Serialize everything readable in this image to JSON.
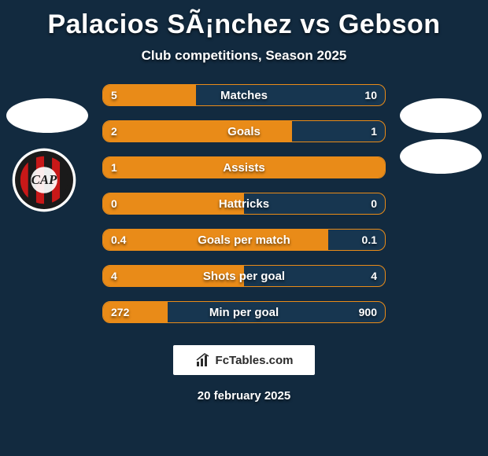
{
  "background_color": "#122a3f",
  "title": "Palacios SÃ¡nchez vs Gebson",
  "subtitle": "Club competitions, Season 2025",
  "avatar_placeholder_bg": "#ffffff",
  "badge": {
    "outer_ring": "#ffffff",
    "inner_ring": "#1a1a1a",
    "stripe_red": "#c81818",
    "stripe_black": "#1a1a1a",
    "text": "CAP",
    "text_color": "#ffffff"
  },
  "bar_style": {
    "border_color": "#e98b18",
    "track_color": "#173650",
    "fill_color": "#e98b18",
    "height": 28,
    "radius": 10,
    "label_fontsize": 15,
    "value_fontsize": 14
  },
  "bars": [
    {
      "label": "Matches",
      "left": "5",
      "right": "10",
      "fill_pct": 33
    },
    {
      "label": "Goals",
      "left": "2",
      "right": "1",
      "fill_pct": 67
    },
    {
      "label": "Assists",
      "left": "1",
      "right": "",
      "fill_pct": 100
    },
    {
      "label": "Hattricks",
      "left": "0",
      "right": "0",
      "fill_pct": 50
    },
    {
      "label": "Goals per match",
      "left": "0.4",
      "right": "0.1",
      "fill_pct": 80
    },
    {
      "label": "Shots per goal",
      "left": "4",
      "right": "4",
      "fill_pct": 50
    },
    {
      "label": "Min per goal",
      "left": "272",
      "right": "900",
      "fill_pct": 23
    }
  ],
  "footer": {
    "brand": "FcTables.com",
    "date": "20 february 2025",
    "box_bg": "#ffffff",
    "text_color": "#2a2a2a"
  }
}
